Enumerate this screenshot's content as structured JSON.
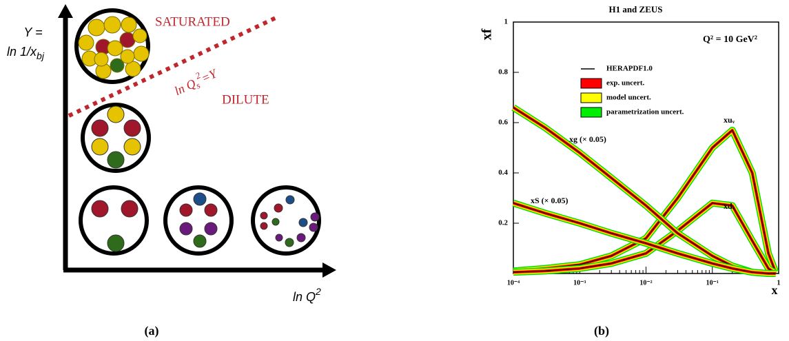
{
  "diagram": {
    "y_label": {
      "line1": "Y =",
      "line2": "ln 1/x",
      "line2_sub": "bj"
    },
    "x_label": {
      "text": "ln Q",
      "sup": "2"
    },
    "saturated": "SATURATED",
    "dilute": "DILUTE",
    "saturation_line": {
      "text": "ln Q",
      "sub": "s",
      "sup": "2",
      "rest": "=Y"
    }
  },
  "captions": [
    "(a)",
    "(b)"
  ],
  "chart_data": {
    "type": "line",
    "title": "H1 and ZEUS",
    "xlabel": "x",
    "ylabel": "xf",
    "log_x": true,
    "xlim": [
      0.0001,
      1
    ],
    "ylim": [
      0,
      1
    ],
    "xticks": [
      {
        "value": 0.0001,
        "label": "10⁻⁴"
      },
      {
        "value": 0.001,
        "label": "10⁻³"
      },
      {
        "value": 0.01,
        "label": "10⁻²"
      },
      {
        "value": 0.1,
        "label": "10⁻¹"
      },
      1
    ],
    "yticks": [
      0.2,
      0.4,
      0.6,
      0.8,
      1
    ],
    "x": [
      0.0001,
      0.0003,
      0.001,
      0.003,
      0.01,
      0.03,
      0.1,
      0.2,
      0.4,
      0.7,
      0.9
    ],
    "series": [
      {
        "name": "xuᵥ",
        "color": "#000000",
        "values": [
          0.01,
          0.02,
          0.035,
          0.07,
          0.14,
          0.3,
          0.5,
          0.57,
          0.4,
          0.08,
          0.005
        ]
      },
      {
        "name": "xdᵥ",
        "color": "#000000",
        "values": [
          0.005,
          0.01,
          0.02,
          0.04,
          0.08,
          0.17,
          0.28,
          0.27,
          0.13,
          0.02,
          0.001
        ]
      },
      {
        "name": "xg (× 0.05)",
        "color": "#000000",
        "values": [
          0.66,
          0.58,
          0.48,
          0.38,
          0.27,
          0.16,
          0.07,
          0.03,
          0.005,
          0,
          0
        ]
      },
      {
        "name": "xS (× 0.05)",
        "color": "#000000",
        "values": [
          0.28,
          0.24,
          0.2,
          0.16,
          0.12,
          0.08,
          0.04,
          0.02,
          0.005,
          0,
          0
        ]
      }
    ],
    "legend": [
      {
        "label": "HERAPDF1.0",
        "color": "#000000"
      },
      {
        "label": "exp. uncert.",
        "color": "#ff0000"
      },
      {
        "label": "model uncert.",
        "color": "#ffff00"
      },
      {
        "label": "parametrization uncert.",
        "color": "#00ee00"
      }
    ],
    "annotation": "Q² = 10 GeV²"
  }
}
